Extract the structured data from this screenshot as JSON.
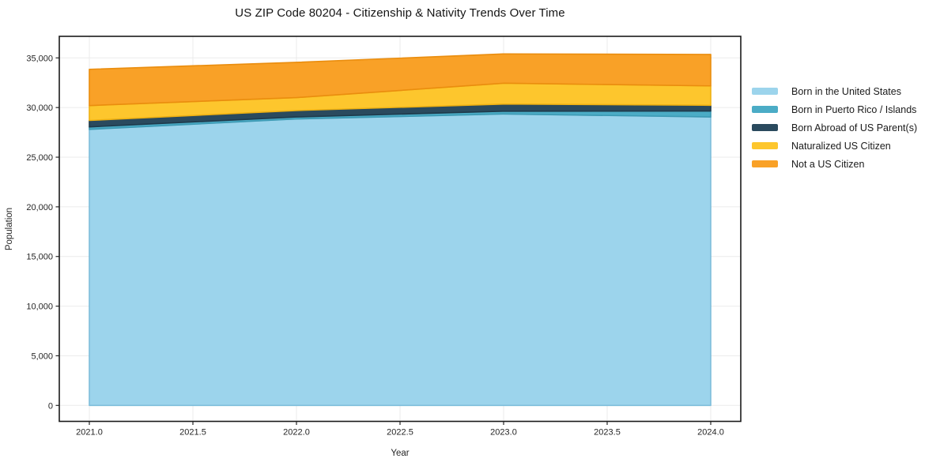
{
  "chart_data": {
    "type": "area",
    "stacked": true,
    "title": "US ZIP Code 80204 - Citizenship & Nativity Trends Over Time",
    "xlabel": "Year",
    "ylabel": "Population",
    "x": [
      2021,
      2022,
      2023,
      2024
    ],
    "x_tick_values": [
      2021.0,
      2021.5,
      2022.0,
      2022.5,
      2023.0,
      2023.5,
      2024.0
    ],
    "x_tick_labels": [
      "2021.0",
      "2021.5",
      "2022.0",
      "2022.5",
      "2023.0",
      "2023.5",
      "2024.0"
    ],
    "y_tick_values": [
      0,
      5000,
      10000,
      15000,
      20000,
      25000,
      30000,
      35000
    ],
    "y_tick_labels": [
      "0",
      "5,000",
      "10,000",
      "15,000",
      "20,000",
      "25,000",
      "30,000",
      "35,000"
    ],
    "grid": true,
    "legend_position": "outside-right",
    "series": [
      {
        "name": "Born in the United States",
        "color": "#9CD4EC",
        "edge_color": "#7EBEDB",
        "values": [
          27800,
          28850,
          29350,
          29050
        ]
      },
      {
        "name": "Born in Puerto Rico / Islands",
        "color": "#4BACC6",
        "edge_color": "#3D9AB4",
        "values": [
          250,
          200,
          280,
          600
        ]
      },
      {
        "name": "Born Abroad of US Parent(s)",
        "color": "#2A4A5E",
        "edge_color": "#1F3A4B",
        "values": [
          650,
          650,
          720,
          580
        ]
      },
      {
        "name": "Naturalized US Citizen",
        "color": "#FDC62D",
        "edge_color": "#EFB112",
        "values": [
          1500,
          1300,
          2100,
          1950
        ]
      },
      {
        "name": "Not a US Citizen",
        "color": "#F9A127",
        "edge_color": "#EA8D0E",
        "values": [
          3650,
          3550,
          2950,
          3170
        ]
      }
    ],
    "stack_totals": [
      33850,
      34550,
      35400,
      35350
    ]
  }
}
